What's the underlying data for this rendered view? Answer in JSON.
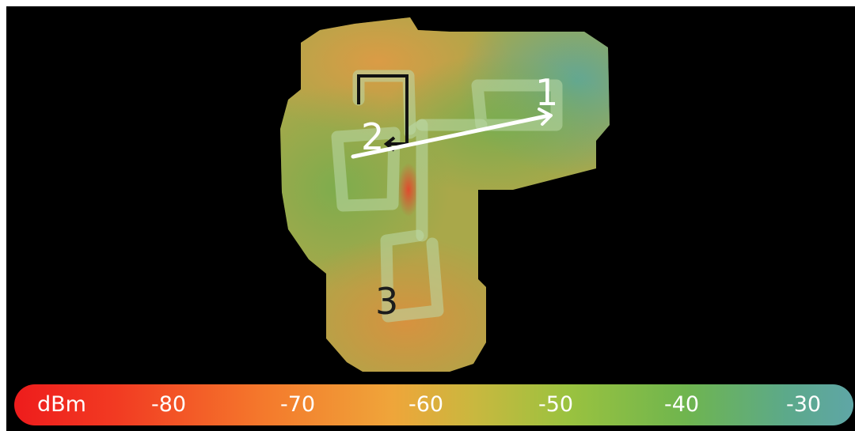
{
  "legend": {
    "unit": "dBm",
    "ticks": [
      "-80",
      "-70",
      "-60",
      "-50",
      "-40",
      "-30"
    ],
    "colors": [
      "#ee1c1c",
      "#f47a2c",
      "#efa53a",
      "#c8b83f",
      "#6fb54e",
      "#5fa6a6"
    ]
  },
  "map": {
    "markers": [
      {
        "label": "1",
        "color": "#ffffff"
      },
      {
        "label": "2",
        "color": "#ffffff"
      },
      {
        "label": "3",
        "color": "#1c1c1c"
      }
    ]
  }
}
